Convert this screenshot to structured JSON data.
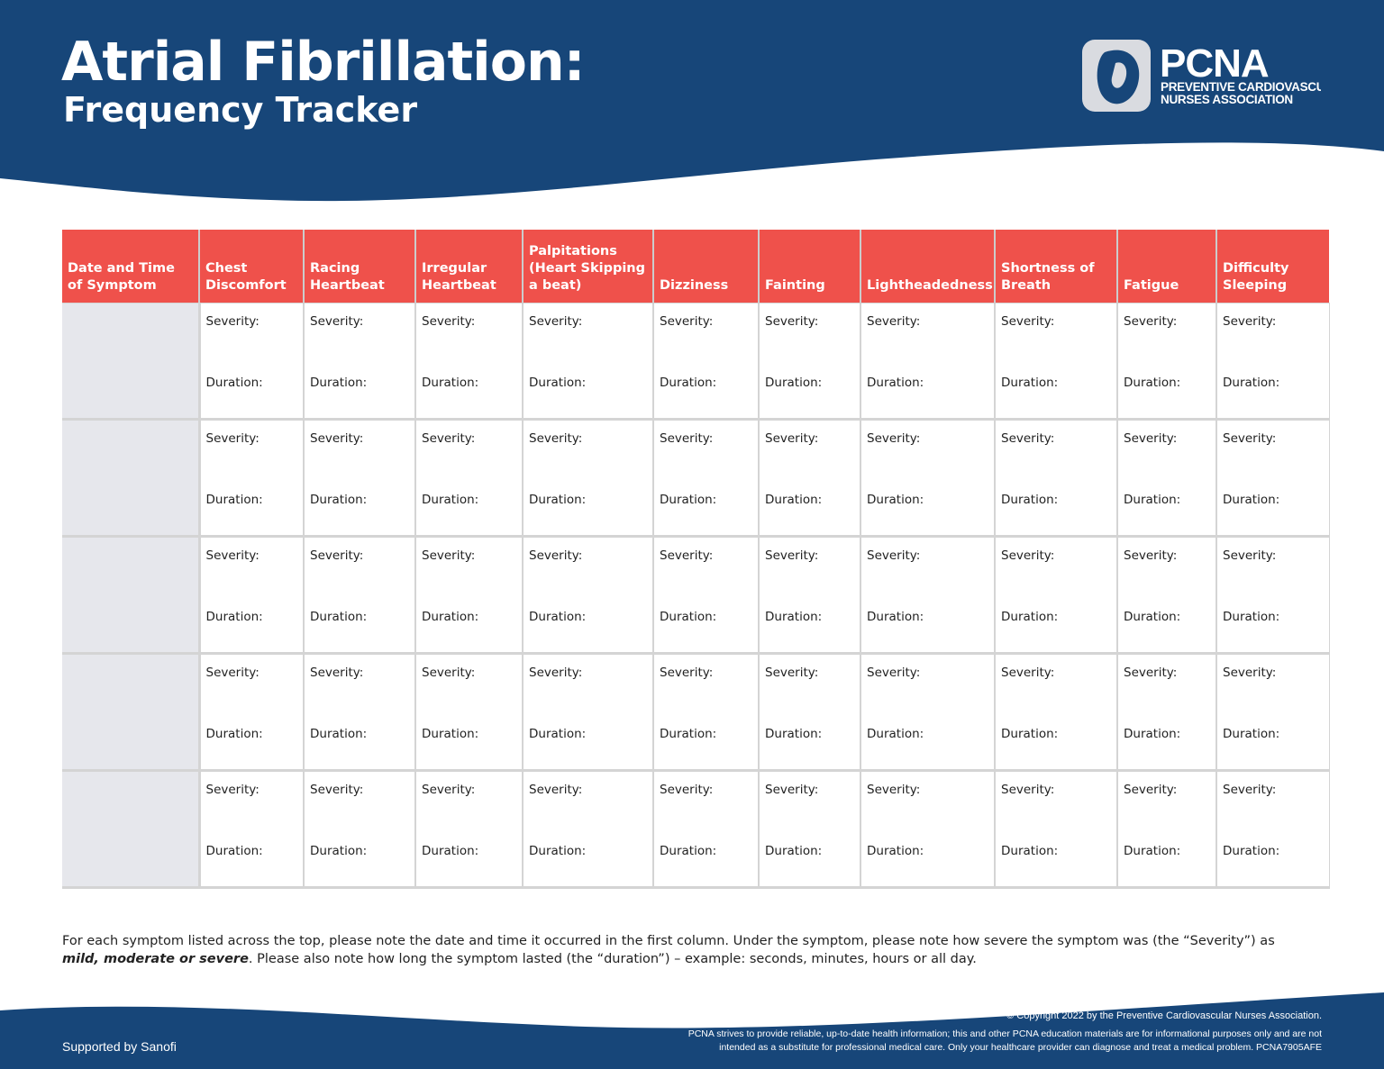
{
  "header": {
    "title": "Atrial Fibrillation:",
    "subtitle": "Frequency Tracker",
    "logo": {
      "name": "PCNA",
      "line1": "PREVENTIVE CARDIOVASCUI",
      "line2": "NURSES ASSOCIATION"
    }
  },
  "table": {
    "headers": [
      "Date and Time of Symptom",
      "Chest Discomfort",
      "Racing Heartbeat",
      "Irregular Heartbeat",
      "Palpitations (Heart Skipping a beat)",
      "Dizziness",
      "Fainting",
      "Lightheadedness",
      "Shortness of Breath",
      "Fatigue",
      "Difficulty Sleeping"
    ],
    "rows": [
      [
        [
          "Severity:",
          "Duration:"
        ],
        [
          "Severity:",
          "Duration:"
        ],
        [
          "Severity:",
          "Duration:"
        ],
        [
          "Severity:",
          "Duration:"
        ],
        [
          "Severity:",
          "Duration:"
        ],
        [
          "Severity:",
          "Duration:"
        ],
        [
          "Severity:",
          "Duration:"
        ],
        [
          "Severity:",
          "Duration:"
        ],
        [
          "Severity:",
          "Duration:"
        ],
        [
          "Severity:",
          "Duration:"
        ]
      ],
      [
        [
          "Severity:",
          "Duration:"
        ],
        [
          "Severity:",
          "Duration:"
        ],
        [
          "Severity:",
          "Duration:"
        ],
        [
          "Severity:",
          "Duration:"
        ],
        [
          "Severity:",
          "Duration:"
        ],
        [
          "Severity:",
          "Duration:"
        ],
        [
          "Severity:",
          "Duration:"
        ],
        [
          "Severity:",
          "Duration:"
        ],
        [
          "Severity:",
          "Duration:"
        ],
        [
          "Severity:",
          "Duration:"
        ]
      ],
      [
        [
          "Severity:",
          "Duration:"
        ],
        [
          "Severity:",
          "Duration:"
        ],
        [
          "Severity:",
          "Duration:"
        ],
        [
          "Severity:",
          "Duration:"
        ],
        [
          "Severity:",
          "Duration:"
        ],
        [
          "Severity:",
          "Duration:"
        ],
        [
          "Severity:",
          "Duration:"
        ],
        [
          "Severity:",
          "Duration:"
        ],
        [
          "Severity:",
          "Duration:"
        ],
        [
          "Severity:",
          "Duration:"
        ]
      ],
      [
        [
          "Severity:",
          "Duration:"
        ],
        [
          "Severity:",
          "Duration:"
        ],
        [
          "Severity:",
          "Duration:"
        ],
        [
          "Severity:",
          "Duration:"
        ],
        [
          "Severity:",
          "Duration:"
        ],
        [
          "Severity:",
          "Duration:"
        ],
        [
          "Severity:",
          "Duration:"
        ],
        [
          "Severity:",
          "Duration:"
        ],
        [
          "Severity:",
          "Duration:"
        ],
        [
          "Severity:",
          "Duration:"
        ]
      ],
      [
        [
          "Severity:",
          "Duration:"
        ],
        [
          "Severity:",
          "Duration:"
        ],
        [
          "Severity:",
          "Duration:"
        ],
        [
          "Severity:",
          "Duration:"
        ],
        [
          "Severity:",
          "Duration:"
        ],
        [
          "Severity:",
          "Duration:"
        ],
        [
          "Severity:",
          "Duration:"
        ],
        [
          "Severity:",
          "Duration:"
        ],
        [
          "Severity:",
          "Duration:"
        ],
        [
          "Severity:",
          "Duration:"
        ]
      ]
    ]
  },
  "note": [
    "For each symptom listed across the top, please note the date and time it occurred in the first column. Under the symptom, please note how severe the symptom was (the “Severity”) as ",
    "mild, moderate or severe",
    ". Please also note how long the symptom lasted (the “duration”) – example: seconds, minutes, hours or all day."
  ],
  "footer": {
    "supported": "Supported by Sanofi",
    "copyright": "© Copyright 2022 by the Preventive Cardiovascular Nurses Association.",
    "disclaimer1": "PCNA strives to provide reliable, up-to-date health information; this and other PCNA education materials are for informational purposes only and are not",
    "disclaimer2": "intended as a substitute for professional medical care. Only your healthcare provider can diagnose and treat a medical problem. PCNA7905AFE"
  }
}
